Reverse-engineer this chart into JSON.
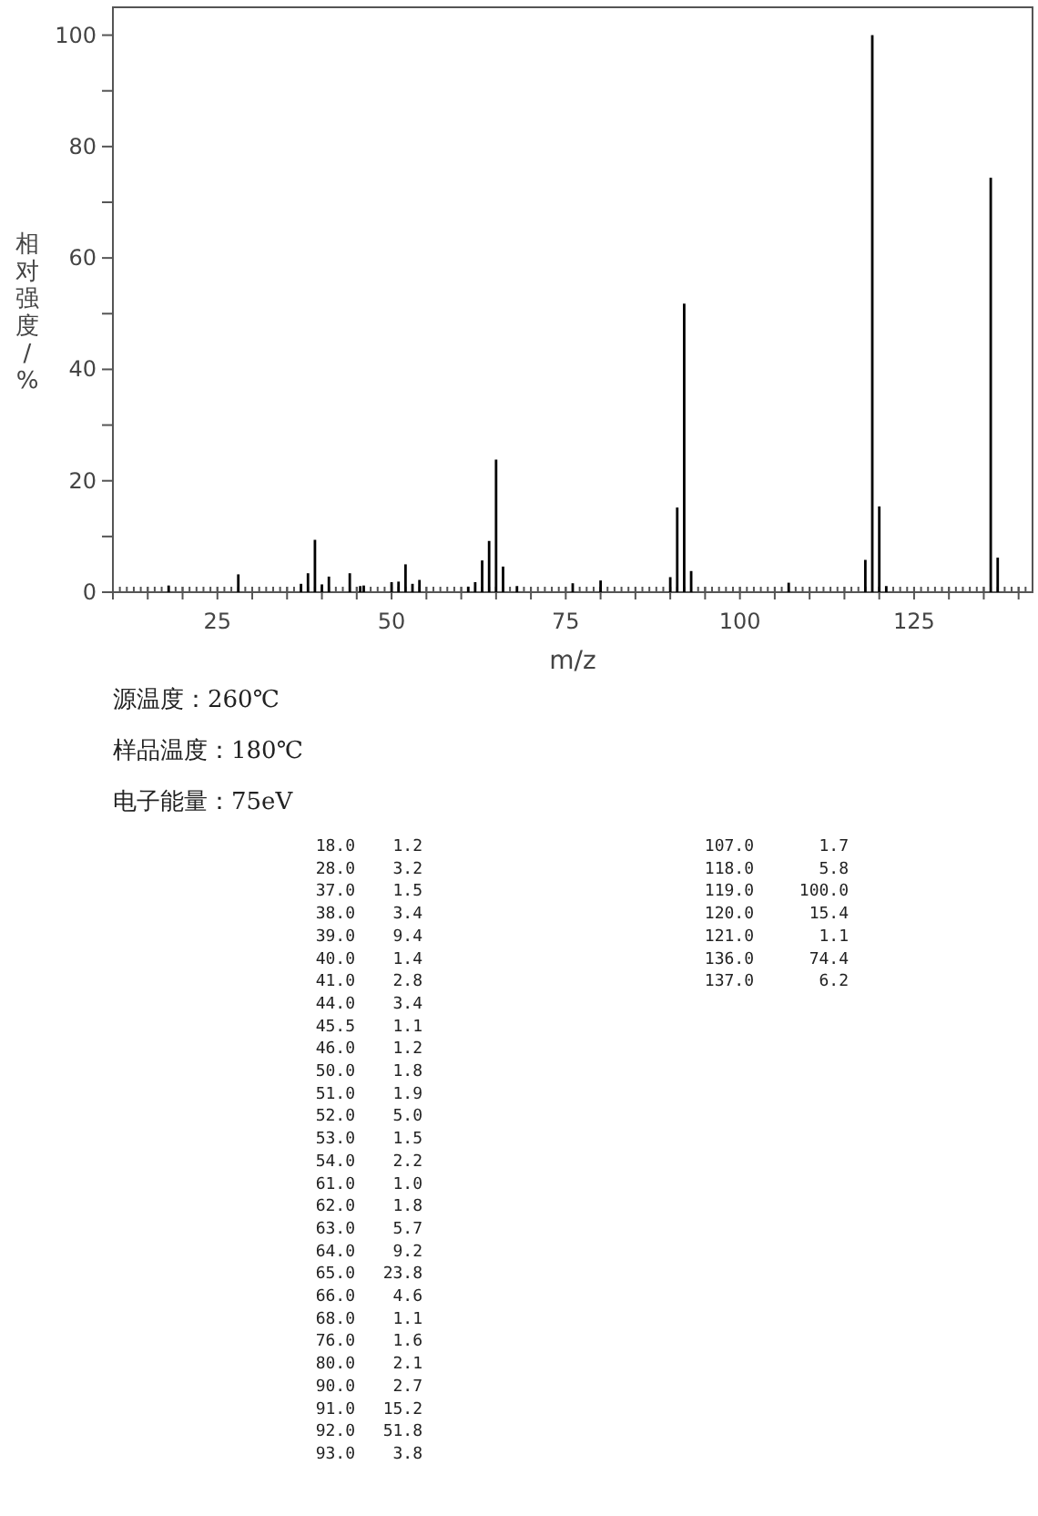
{
  "chart_data": [
    {
      "type": "bar",
      "ylabel": "相对强度/%",
      "xlabel": "m/z",
      "x": [
        18,
        28,
        37,
        38,
        39,
        40,
        41,
        44,
        45.5,
        46,
        50,
        51,
        52,
        53,
        54,
        61,
        62,
        63,
        64,
        65,
        66,
        68,
        76,
        80,
        90,
        91,
        92,
        93,
        107,
        118,
        119,
        120,
        121,
        136,
        137
      ],
      "values": [
        1.2,
        3.2,
        1.5,
        3.4,
        9.4,
        1.4,
        2.8,
        3.4,
        1.1,
        1.2,
        1.8,
        1.9,
        5.0,
        1.5,
        2.2,
        1.0,
        1.8,
        5.7,
        9.2,
        23.8,
        4.6,
        1.1,
        1.6,
        2.1,
        2.7,
        15.2,
        51.8,
        3.8,
        1.7,
        5.8,
        100.0,
        15.4,
        1.1,
        74.4,
        6.2
      ],
      "color": "#000000",
      "xlim": [
        10,
        142
      ],
      "ylim": [
        0,
        105
      ],
      "xticks": [
        {
          "value": 10,
          "label": null
        },
        {
          "value": 15,
          "label": null
        },
        {
          "value": 20,
          "label": null
        },
        25,
        {
          "value": 30,
          "label": null
        },
        {
          "value": 35,
          "label": null
        },
        {
          "value": 40,
          "label": null
        },
        {
          "value": 45,
          "label": null
        },
        50,
        {
          "value": 55,
          "label": null
        },
        {
          "value": 60,
          "label": null
        },
        {
          "value": 65,
          "label": null
        },
        {
          "value": 70,
          "label": null
        },
        75,
        {
          "value": 80,
          "label": null
        },
        {
          "value": 85,
          "label": null
        },
        {
          "value": 90,
          "label": null
        },
        {
          "value": 95,
          "label": null
        },
        100,
        {
          "value": 105,
          "label": null
        },
        {
          "value": 110,
          "label": null
        },
        {
          "value": 115,
          "label": null
        },
        {
          "value": 120,
          "label": null
        },
        125,
        {
          "value": 130,
          "label": null
        },
        {
          "value": 135,
          "label": null
        },
        {
          "value": 140,
          "label": null
        }
      ],
      "yticks": [
        0,
        {
          "value": 10,
          "label": null
        },
        20,
        {
          "value": 30,
          "label": null
        },
        40,
        {
          "value": 50,
          "label": null
        },
        60,
        {
          "value": 70,
          "label": null
        },
        80,
        {
          "value": 90,
          "label": null
        },
        100
      ],
      "grid": false,
      "annotations": [
        "源温度：260℃",
        "样品温度：180℃",
        "电子能量：75eV"
      ]
    },
    {
      "type": "other",
      "annotations": [
        "18.0",
        "1.2",
        "28.0",
        "3.2",
        "37.0",
        "1.5",
        "38.0",
        "3.4",
        "39.0",
        "9.4",
        "40.0",
        "1.4",
        "41.0",
        "2.8",
        "44.0",
        "3.4",
        "45.5",
        "1.1",
        "46.0",
        "1.2",
        "50.0",
        "1.8",
        "51.0",
        "1.9",
        "52.0",
        "5.0",
        "53.0",
        "1.5",
        "54.0",
        "2.2",
        "61.0",
        "1.0",
        "62.0",
        "1.8",
        "63.0",
        "5.7",
        "64.0",
        "9.2",
        "65.0",
        "23.8",
        "66.0",
        "4.6",
        "68.0",
        "1.1",
        "76.0",
        "1.6",
        "80.0",
        "2.1",
        "90.0",
        "2.7",
        "91.0",
        "15.2",
        "92.0",
        "51.8",
        "93.0",
        "3.8",
        "107.0",
        "1.7",
        "118.0",
        "5.8",
        "119.0",
        "100.0",
        "120.0",
        "15.4",
        "121.0",
        "1.1",
        "136.0",
        "74.4",
        "137.0",
        "6.2"
      ]
    }
  ]
}
